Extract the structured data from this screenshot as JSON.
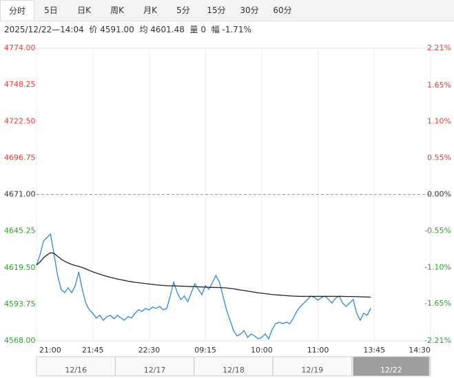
{
  "tabs": [
    "分时",
    "5日",
    "日K",
    "周K",
    "月K",
    "5分",
    "15分",
    "30分",
    "60分"
  ],
  "info": "2025/12/22—14:04  价 4591.00  均 4601.48  量 0  幅 -1.71%",
  "chart_data": {
    "type": "line",
    "xlim": [
      0,
      112
    ],
    "xticks": [
      {
        "value": 0,
        "label": "21:00"
      },
      {
        "value": 16,
        "label": "21:45"
      },
      {
        "value": 32,
        "label": "22:30"
      },
      {
        "value": 48,
        "label": "09:15"
      },
      {
        "value": 64,
        "label": "10:00"
      },
      {
        "value": 80,
        "label": "11:00"
      },
      {
        "value": 96,
        "label": "13:45"
      },
      {
        "value": 112,
        "label": "14:30"
      }
    ],
    "ylim": [
      4568,
      4774
    ],
    "yticks": [
      {
        "value": 4568,
        "label": "4568.00"
      },
      4593.75,
      {
        "value": 4619.5,
        "label": "4619.50"
      },
      4645.25,
      {
        "value": 4671,
        "label": "4671.00"
      },
      4696.75,
      {
        "value": 4722.5,
        "label": "4722.50"
      },
      4748.25,
      {
        "value": 4774,
        "label": "4774.00"
      }
    ],
    "y2lim": [
      -2.21,
      2.21
    ],
    "y2ticks": [
      {
        "value": -2.21,
        "label": "-2.21%"
      },
      {
        "value": -1.65,
        "label": "-1.65%"
      },
      {
        "value": -1.1,
        "label": "-1.10%"
      },
      {
        "value": -0.55,
        "label": "-0.55%"
      },
      {
        "value": 0,
        "label": "0.00%"
      },
      {
        "value": 0.55,
        "label": "0.55%"
      },
      {
        "value": 1.1,
        "label": "1.10%"
      },
      {
        "value": 1.65,
        "label": "1.65%"
      },
      {
        "value": 2.21,
        "label": "2.21%"
      }
    ],
    "grid": true,
    "series": [
      {
        "color": "#2f86d6",
        "values": [
          4621.3,
          4628.6,
          4638.3,
          4640.7,
          4643.1,
          4628.6,
          4614.0,
          4604.3,
          4601.9,
          4605.3,
          4601.9,
          4606.8,
          4616.5,
          4604.3,
          4594.6,
          4589.8,
          4587.4,
          4584.0,
          4586.0,
          4582.5,
          4585.0,
          4586.0,
          4583.5,
          4586.0,
          4584.0,
          4582.5,
          4585.0,
          4584.0,
          4587.4,
          4589.8,
          4588.8,
          4590.8,
          4589.8,
          4591.7,
          4590.8,
          4592.2,
          4589.8,
          4590.8,
          4599.5,
          4609.2,
          4601.9,
          4597.1,
          4599.5,
          4595.6,
          4601.9,
          4608.2,
          4604.3,
          4600.5,
          4606.8,
          4604.3,
          4609.2,
          4614.0,
          4609.2,
          4599.5,
          4589.8,
          4582.5,
          4575.3,
          4571.4,
          4572.8,
          4575.3,
          4570.4,
          4572.8,
          4571.4,
          4569.4,
          4570.4,
          4572.8,
          4569.4,
          4576.2,
          4580.1,
          4581.1,
          4580.1,
          4581.1,
          4580.1,
          4584.0,
          4588.8,
          4592.2,
          4594.6,
          4597.1,
          4599.5,
          4598.5,
          4596.6,
          4598.5,
          4599.5,
          4597.1,
          4594.6,
          4598.0,
          4599.5,
          4594.6,
          4592.2,
          4594.6,
          4597.1,
          4587.4,
          4582.5,
          4587.4,
          4586.0,
          4591.0
        ]
      },
      {
        "color": "#222222",
        "values": [
          4621.3,
          4623.5,
          4626.5,
          4628.5,
          4630.0,
          4629.5,
          4627.5,
          4625.5,
          4624.0,
          4622.8,
          4621.8,
          4621.0,
          4620.4,
          4619.6,
          4618.6,
          4617.6,
          4616.6,
          4615.7,
          4614.9,
          4614.1,
          4613.4,
          4612.7,
          4612.1,
          4611.5,
          4611.0,
          4610.5,
          4610.0,
          4609.6,
          4609.2,
          4608.9,
          4608.6,
          4608.3,
          4608.0,
          4607.7,
          4607.4,
          4607.2,
          4607.0,
          4606.8,
          4606.7,
          4606.7,
          4606.6,
          4606.5,
          4606.4,
          4606.3,
          4606.2,
          4606.1,
          4606.0,
          4605.9,
          4605.8,
          4605.7,
          4605.6,
          4605.6,
          4605.5,
          4605.4,
          4605.2,
          4604.9,
          4604.6,
          4604.2,
          4603.8,
          4603.4,
          4603.0,
          4602.6,
          4602.2,
          4601.8,
          4601.5,
          4601.2,
          4600.9,
          4600.6,
          4600.4,
          4600.2,
          4600.0,
          4599.8,
          4599.6,
          4599.5,
          4599.4,
          4599.3,
          4599.3,
          4599.3,
          4599.3,
          4599.3,
          4599.3,
          4599.3,
          4599.3,
          4599.3,
          4599.3,
          4599.3,
          4599.3,
          4599.3,
          4599.2,
          4599.2,
          4599.2,
          4599.1,
          4599.0,
          4598.9,
          4598.8,
          4598.7
        ]
      }
    ]
  },
  "navigator": {
    "dates": [
      "12/16",
      "12/17",
      "12/18",
      "12/19",
      "12/22"
    ]
  }
}
